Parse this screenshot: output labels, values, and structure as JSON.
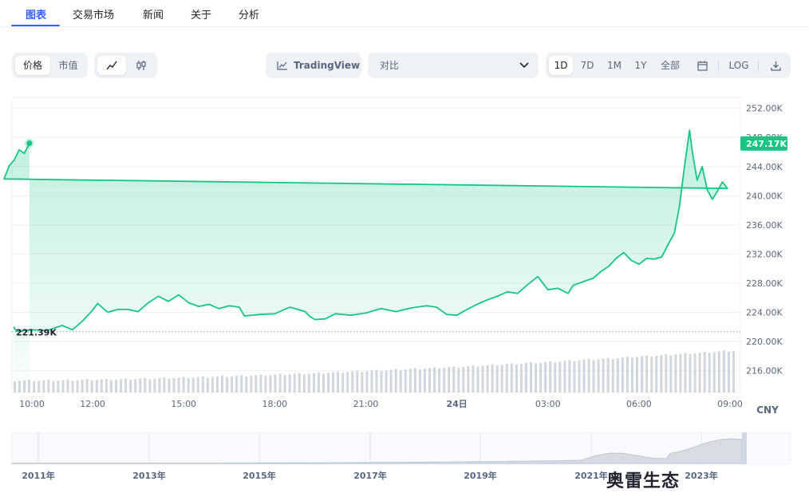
{
  "tabs": [
    {
      "label": "图表",
      "active": true
    },
    {
      "label": "交易市场"
    },
    {
      "label": "新闻"
    },
    {
      "label": "关于"
    },
    {
      "label": "分析"
    }
  ],
  "toolbar": {
    "metric_options": [
      "价格",
      "市值"
    ],
    "metric_selected": "价格",
    "chart_style_icons": [
      "line-chart-icon",
      "candlestick-icon"
    ],
    "chart_style_selected": "line-chart-icon",
    "tradingview_label": "TradingView",
    "compare_placeholder": "对比",
    "ranges": [
      "1D",
      "7D",
      "1M",
      "1Y",
      "全部"
    ],
    "range_selected": "1D",
    "log_label": "LOG"
  },
  "watermark_text": "奥雷生态",
  "currency_label": "CNY",
  "colors": {
    "line": "#16c784",
    "accent": "#3861fb",
    "badge_bg": "#16c784",
    "volume": "#c3c8d2"
  },
  "chart_data": {
    "type": "area",
    "y_tick_labels": [
      "252.00K",
      "248.00K",
      "244.00K",
      "240.00K",
      "236.00K",
      "232.00K",
      "228.00K",
      "224.00K",
      "220.00K",
      "216.00K"
    ],
    "ylim": [
      213000,
      253500
    ],
    "x_tick_labels": [
      "10:00",
      "12:00",
      "15:00",
      "18:00",
      "21:00",
      "24日",
      "03:00",
      "06:00",
      "09:00"
    ],
    "open_price_label": "221.39K",
    "open_price": 221390,
    "current_price_label": "247.17K",
    "current_price": 247170,
    "series": [
      {
        "points": [
          [
            "09:00",
            222.0
          ],
          [
            "09:30",
            221.4
          ],
          [
            "10:00",
            221.6
          ],
          [
            "10:30",
            221.5
          ],
          [
            "11:00",
            222.2
          ],
          [
            "11:20",
            221.6
          ],
          [
            "11:40",
            222.8
          ],
          [
            "12:00",
            224.3
          ],
          [
            "12:10",
            225.2
          ],
          [
            "12:30",
            224.0
          ],
          [
            "12:50",
            224.4
          ],
          [
            "13:10",
            224.4
          ],
          [
            "13:30",
            224.1
          ],
          [
            "13:50",
            225.3
          ],
          [
            "14:10",
            226.2
          ],
          [
            "14:30",
            225.5
          ],
          [
            "14:50",
            226.4
          ],
          [
            "15:10",
            225.3
          ],
          [
            "15:30",
            224.8
          ],
          [
            "15:50",
            225.1
          ],
          [
            "16:10",
            224.5
          ],
          [
            "16:30",
            224.9
          ],
          [
            "16:50",
            224.7
          ],
          [
            "17:00",
            223.5
          ],
          [
            "17:30",
            223.7
          ],
          [
            "18:00",
            223.8
          ],
          [
            "18:30",
            224.7
          ],
          [
            "19:00",
            224.1
          ],
          [
            "19:10",
            223.4
          ],
          [
            "19:20",
            223.0
          ],
          [
            "19:40",
            223.1
          ],
          [
            "20:00",
            223.8
          ],
          [
            "20:30",
            223.6
          ],
          [
            "21:00",
            223.9
          ],
          [
            "21:30",
            224.5
          ],
          [
            "22:00",
            224.1
          ],
          [
            "22:30",
            224.6
          ],
          [
            "23:00",
            224.9
          ],
          [
            "23:20",
            224.7
          ],
          [
            "23:40",
            223.7
          ],
          [
            "24:00",
            223.6
          ],
          [
            "00:20",
            224.4
          ],
          [
            "00:40",
            225.1
          ],
          [
            "01:00",
            225.7
          ],
          [
            "01:20",
            226.2
          ],
          [
            "01:40",
            226.8
          ],
          [
            "02:00",
            226.6
          ],
          [
            "02:20",
            227.8
          ],
          [
            "02:40",
            228.9
          ],
          [
            "03:00",
            227.1
          ],
          [
            "03:20",
            227.3
          ],
          [
            "03:40",
            226.6
          ],
          [
            "03:50",
            227.7
          ],
          [
            "04:10",
            228.2
          ],
          [
            "04:30",
            228.7
          ],
          [
            "04:45",
            229.6
          ],
          [
            "05:00",
            230.3
          ],
          [
            "05:15",
            231.4
          ],
          [
            "05:30",
            232.2
          ],
          [
            "05:45",
            231.1
          ],
          [
            "06:00",
            230.6
          ],
          [
            "06:15",
            231.4
          ],
          [
            "06:30",
            231.3
          ],
          [
            "06:45",
            231.6
          ],
          [
            "07:00",
            233.6
          ],
          [
            "07:10",
            234.9
          ],
          [
            "07:20",
            238.5
          ],
          [
            "07:30",
            244.0
          ],
          [
            "07:40",
            249.0
          ],
          [
            "07:45",
            246.3
          ],
          [
            "07:55",
            242.1
          ],
          [
            "08:05",
            244.0
          ],
          [
            "08:15",
            240.8
          ],
          [
            "08:25",
            239.5
          ],
          [
            "08:35",
            240.6
          ],
          [
            "08:45",
            241.9
          ],
          [
            "08:55",
            241.0
          ],
          [
            "09:05",
            242.3
          ],
          [
            "09:15",
            244.1
          ],
          [
            "09:25",
            244.9
          ],
          [
            "09:35",
            246.3
          ],
          [
            "09:45",
            245.8
          ],
          [
            "09:55",
            247.2
          ]
        ]
      }
    ],
    "volume_present": true,
    "grid": true,
    "navigator": {
      "x_tick_labels": [
        "2011年",
        "2013年",
        "2015年",
        "2017年",
        "2019年",
        "2021年",
        "2023年"
      ]
    }
  }
}
